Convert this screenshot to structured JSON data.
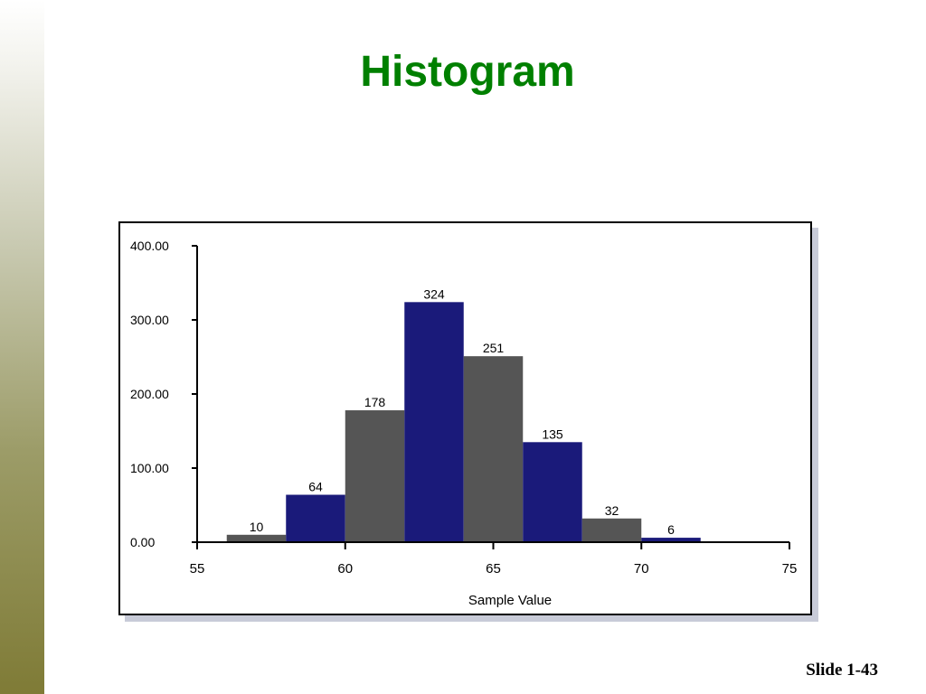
{
  "slide": {
    "title": "Histogram",
    "slide_number": "Slide 1-43"
  },
  "colors": {
    "title": "#008000",
    "bar_blue": "#1a1a7a",
    "bar_gray": "#555555",
    "sidebar_gradient_end": "#7f7b36"
  },
  "chart_data": {
    "type": "bar",
    "title": "",
    "xlabel": "Sample Value",
    "ylabel": "",
    "xlim": [
      55,
      75
    ],
    "ylim": [
      0,
      400
    ],
    "x_ticks": [
      "55",
      "60",
      "65",
      "70",
      "75"
    ],
    "y_ticks": [
      "0.00",
      "100.00",
      "200.00",
      "300.00",
      "400.00"
    ],
    "bin_edges": [
      56,
      58,
      60,
      62,
      64,
      66,
      68,
      70,
      72
    ],
    "values": [
      10,
      64,
      178,
      324,
      251,
      135,
      32,
      6
    ],
    "bar_colors": [
      "#555555",
      "#1a1a7a",
      "#555555",
      "#1a1a7a",
      "#555555",
      "#1a1a7a",
      "#555555",
      "#1a1a7a"
    ],
    "data_labels": [
      "10",
      "64",
      "178",
      "324",
      "251",
      "135",
      "32",
      "6"
    ],
    "grid": false,
    "legend": "none"
  }
}
